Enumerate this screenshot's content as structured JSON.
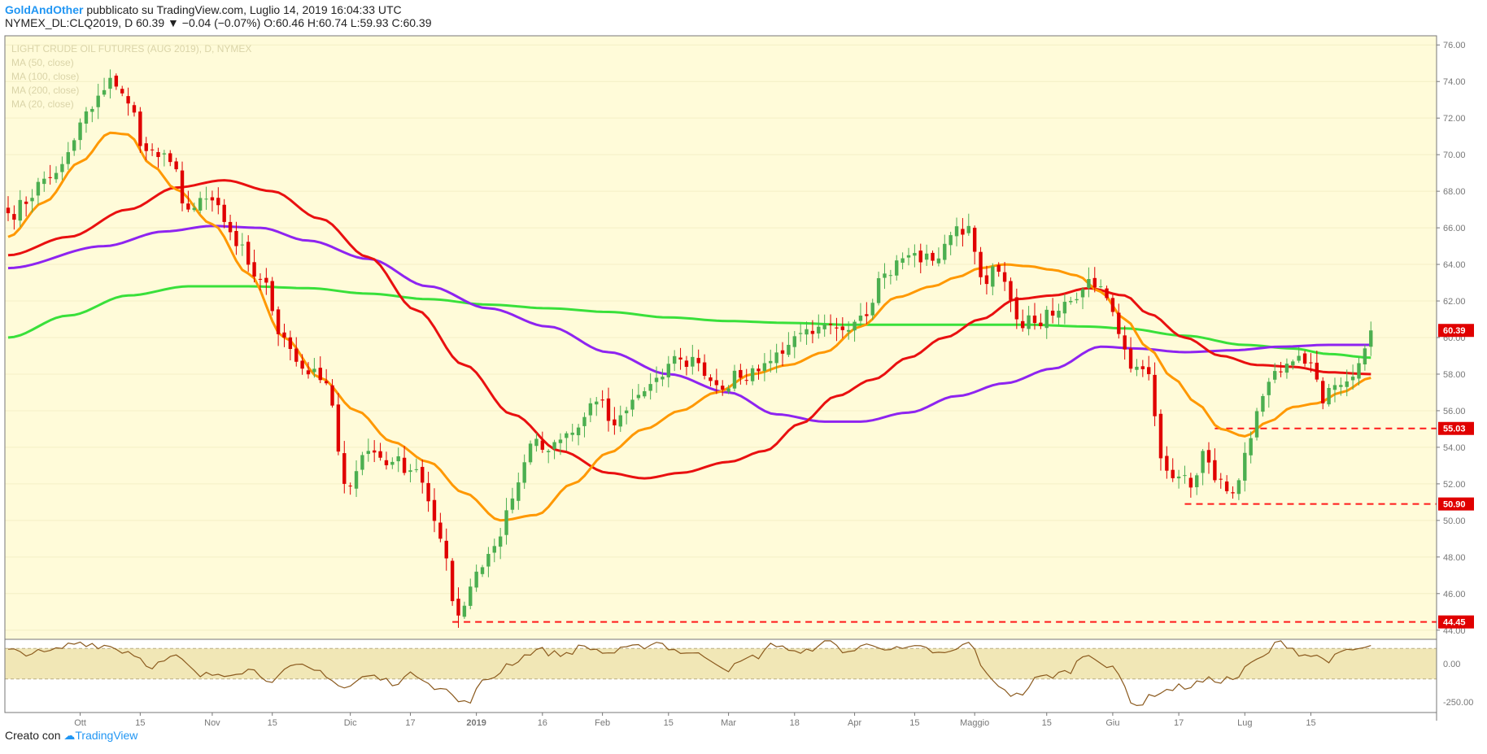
{
  "header": {
    "author": "GoldAndOther",
    "published": "pubblicato su TradingView.com, Luglio 14, 2019 16:04:33 UTC",
    "symbol": "NYMEX_DL:CLQ2019, D",
    "last": "60.39",
    "change": "−0.04 (−0.07%)",
    "o_label": "O:",
    "o": "60.46",
    "h_label": "H:",
    "h": "60.74",
    "l_label": "L:",
    "l": "59.93",
    "c_label": "C:",
    "c": "60.39"
  },
  "footer": {
    "created_with": "Creato con",
    "brand": "TradingView"
  },
  "legend": {
    "title": "LIGHT CRUDE OIL FUTURES (AUG 2019), D, NYMEX",
    "ma50": "MA (50, close)",
    "ma100": "MA (100, close)",
    "ma200": "MA (200, close)",
    "ma20": "MA (20, close)"
  },
  "colors": {
    "background": "#fffbd9",
    "up": "#4caf50",
    "down": "#e00000",
    "ma20": "#ff9800",
    "ma50": "#e91010",
    "ma100": "#8e24f0",
    "ma200": "#39e03a",
    "level": "#ff1a1a",
    "cci": "#8b5a1e"
  },
  "chart_data": [
    {
      "type": "candlestick",
      "ylim": [
        43.5,
        76.5
      ],
      "y_ticks": [
        "76.00",
        "74.00",
        "72.00",
        "70.00",
        "68.00",
        "66.00",
        "64.00",
        "62.00",
        "60.00",
        "58.00",
        "56.00",
        "54.00",
        "52.00",
        "50.00",
        "48.00",
        "46.00",
        "44.00"
      ],
      "x_ticks": [
        "Ott",
        "15",
        "Nov",
        "15",
        "Dic",
        "17",
        "2019",
        "16",
        "Feb",
        "15",
        "Mar",
        "18",
        "Apr",
        "15",
        "Maggio",
        "15",
        "Giu",
        "17",
        "Lug",
        "15"
      ],
      "close_anchors": [
        [
          0,
          66.8
        ],
        [
          8,
          69.0
        ],
        [
          14,
          72.5
        ],
        [
          17,
          74.2
        ],
        [
          20,
          72.8
        ],
        [
          23,
          70.2
        ],
        [
          27,
          69.6
        ],
        [
          30,
          67.0
        ],
        [
          34,
          67.5
        ],
        [
          38,
          65.0
        ],
        [
          42,
          63.2
        ],
        [
          46,
          60.0
        ],
        [
          49,
          58.3
        ],
        [
          53,
          57.5
        ],
        [
          56,
          52.0
        ],
        [
          60,
          53.8
        ],
        [
          64,
          53.2
        ],
        [
          68,
          52.8
        ],
        [
          72,
          49.0
        ],
        [
          75,
          44.8
        ],
        [
          78,
          47.2
        ],
        [
          81,
          48.6
        ],
        [
          84,
          51.2
        ],
        [
          87,
          54.2
        ],
        [
          90,
          53.8
        ],
        [
          94,
          54.8
        ],
        [
          98,
          56.5
        ],
        [
          101,
          55.2
        ],
        [
          104,
          56.6
        ],
        [
          108,
          57.8
        ],
        [
          112,
          58.8
        ],
        [
          115,
          58.6
        ],
        [
          118,
          57.4
        ],
        [
          122,
          57.8
        ],
        [
          126,
          58.6
        ],
        [
          130,
          59.6
        ],
        [
          134,
          60.2
        ],
        [
          138,
          60.5
        ],
        [
          142,
          61.2
        ],
        [
          146,
          63.5
        ],
        [
          150,
          64.5
        ],
        [
          154,
          64.2
        ],
        [
          157,
          65.6
        ],
        [
          160,
          66.1
        ],
        [
          162,
          63.3
        ],
        [
          165,
          63.6
        ],
        [
          168,
          61.0
        ],
        [
          171,
          60.8
        ],
        [
          174,
          61.2
        ],
        [
          177,
          62.0
        ],
        [
          180,
          63.2
        ],
        [
          182,
          62.8
        ],
        [
          184,
          61.4
        ],
        [
          187,
          58.3
        ],
        [
          190,
          58.0
        ],
        [
          192,
          53.4
        ],
        [
          195,
          52.4
        ],
        [
          197,
          51.8
        ],
        [
          199,
          53.8
        ],
        [
          201,
          52.2
        ],
        [
          203,
          51.6
        ],
        [
          205,
          52.2
        ],
        [
          207,
          54.5
        ],
        [
          209,
          56.8
        ],
        [
          212,
          58.1
        ],
        [
          215,
          59.0
        ],
        [
          217,
          58.6
        ],
        [
          219,
          56.4
        ],
        [
          221,
          57.4
        ],
        [
          223,
          57.6
        ],
        [
          225,
          58.6
        ],
        [
          227,
          60.39
        ]
      ],
      "ma20_anchors": [
        [
          0,
          65.5
        ],
        [
          6,
          67.4
        ],
        [
          12,
          69.6
        ],
        [
          17,
          71.2
        ],
        [
          20,
          71.1
        ],
        [
          24,
          69.4
        ],
        [
          28,
          68.1
        ],
        [
          34,
          66.2
        ],
        [
          40,
          63.5
        ],
        [
          46,
          60.0
        ],
        [
          52,
          57.8
        ],
        [
          58,
          56.0
        ],
        [
          64,
          54.3
        ],
        [
          70,
          53.2
        ],
        [
          76,
          51.5
        ],
        [
          82,
          50.0
        ],
        [
          88,
          50.3
        ],
        [
          94,
          52.0
        ],
        [
          100,
          53.7
        ],
        [
          106,
          55.0
        ],
        [
          112,
          56.0
        ],
        [
          118,
          57.0
        ],
        [
          124,
          58.0
        ],
        [
          130,
          58.5
        ],
        [
          136,
          59.2
        ],
        [
          142,
          60.6
        ],
        [
          148,
          62.2
        ],
        [
          154,
          62.8
        ],
        [
          158,
          63.3
        ],
        [
          162,
          63.8
        ],
        [
          166,
          64.0
        ],
        [
          170,
          63.9
        ],
        [
          174,
          63.7
        ],
        [
          178,
          63.4
        ],
        [
          182,
          62.5
        ],
        [
          186,
          61.0
        ],
        [
          190,
          59.4
        ],
        [
          194,
          57.8
        ],
        [
          198,
          56.4
        ],
        [
          202,
          55.0
        ],
        [
          206,
          54.6
        ],
        [
          210,
          55.4
        ],
        [
          214,
          56.2
        ],
        [
          218,
          56.4
        ],
        [
          222,
          57.0
        ],
        [
          227,
          57.8
        ]
      ],
      "ma50_anchors": [
        [
          0,
          64.5
        ],
        [
          10,
          65.5
        ],
        [
          20,
          67.0
        ],
        [
          28,
          68.2
        ],
        [
          36,
          68.6
        ],
        [
          44,
          68.0
        ],
        [
          52,
          66.5
        ],
        [
          60,
          64.4
        ],
        [
          68,
          61.5
        ],
        [
          76,
          58.5
        ],
        [
          84,
          55.8
        ],
        [
          92,
          53.8
        ],
        [
          100,
          52.6
        ],
        [
          106,
          52.3
        ],
        [
          112,
          52.6
        ],
        [
          120,
          53.2
        ],
        [
          126,
          53.8
        ],
        [
          132,
          55.3
        ],
        [
          138,
          56.8
        ],
        [
          144,
          57.7
        ],
        [
          150,
          58.9
        ],
        [
          156,
          60.0
        ],
        [
          162,
          61.0
        ],
        [
          168,
          62.1
        ],
        [
          174,
          62.3
        ],
        [
          180,
          62.7
        ],
        [
          186,
          62.3
        ],
        [
          190,
          61.3
        ],
        [
          196,
          60.0
        ],
        [
          202,
          59.0
        ],
        [
          208,
          58.5
        ],
        [
          214,
          58.4
        ],
        [
          220,
          58.1
        ],
        [
          227,
          58.0
        ]
      ],
      "ma100_anchors": [
        [
          0,
          63.8
        ],
        [
          16,
          65.0
        ],
        [
          26,
          65.8
        ],
        [
          34,
          66.1
        ],
        [
          42,
          66.0
        ],
        [
          50,
          65.3
        ],
        [
          60,
          64.3
        ],
        [
          70,
          62.8
        ],
        [
          80,
          61.6
        ],
        [
          90,
          60.6
        ],
        [
          100,
          59.2
        ],
        [
          110,
          58.0
        ],
        [
          120,
          57.0
        ],
        [
          128,
          55.8
        ],
        [
          136,
          55.4
        ],
        [
          142,
          55.4
        ],
        [
          150,
          55.9
        ],
        [
          158,
          56.8
        ],
        [
          166,
          57.5
        ],
        [
          174,
          58.3
        ],
        [
          182,
          59.5
        ],
        [
          188,
          59.4
        ],
        [
          196,
          59.2
        ],
        [
          204,
          59.3
        ],
        [
          212,
          59.5
        ],
        [
          220,
          59.6
        ],
        [
          227,
          59.6
        ]
      ],
      "ma200_anchors": [
        [
          0,
          60.0
        ],
        [
          10,
          61.2
        ],
        [
          20,
          62.3
        ],
        [
          30,
          62.8
        ],
        [
          40,
          62.8
        ],
        [
          50,
          62.7
        ],
        [
          60,
          62.4
        ],
        [
          70,
          62.1
        ],
        [
          80,
          61.8
        ],
        [
          90,
          61.6
        ],
        [
          100,
          61.4
        ],
        [
          110,
          61.1
        ],
        [
          120,
          60.9
        ],
        [
          130,
          60.8
        ],
        [
          140,
          60.7
        ],
        [
          150,
          60.7
        ],
        [
          160,
          60.7
        ],
        [
          170,
          60.7
        ],
        [
          180,
          60.6
        ],
        [
          186,
          60.5
        ],
        [
          196,
          60.1
        ],
        [
          206,
          59.6
        ],
        [
          214,
          59.4
        ],
        [
          220,
          59.1
        ],
        [
          227,
          58.9
        ]
      ],
      "levels": [
        {
          "value": 60.39,
          "label": "60.39",
          "dashed": false,
          "from_index": null
        },
        {
          "value": 55.03,
          "label": "55.03",
          "dashed": true,
          "from_index": 201
        },
        {
          "value": 50.9,
          "label": "50.90",
          "dashed": true,
          "from_index": 196
        },
        {
          "value": 44.45,
          "label": "44.45",
          "dashed": true,
          "from_index": 74
        }
      ]
    },
    {
      "type": "line",
      "title": "",
      "ylim": [
        -320,
        160
      ],
      "y_ticks": [
        "0.00",
        "-250.00"
      ],
      "band": [
        -100,
        100
      ],
      "cci_anchors": [
        [
          0,
          80
        ],
        [
          6,
          70
        ],
        [
          12,
          140
        ],
        [
          16,
          120
        ],
        [
          20,
          80
        ],
        [
          24,
          -10
        ],
        [
          28,
          40
        ],
        [
          32,
          -80
        ],
        [
          36,
          -60
        ],
        [
          40,
          -40
        ],
        [
          44,
          -100
        ],
        [
          48,
          -20
        ],
        [
          52,
          -50
        ],
        [
          56,
          -160
        ],
        [
          60,
          -80
        ],
        [
          64,
          -120
        ],
        [
          68,
          -70
        ],
        [
          72,
          -160
        ],
        [
          76,
          -260
        ],
        [
          80,
          -100
        ],
        [
          84,
          10
        ],
        [
          88,
          90
        ],
        [
          92,
          60
        ],
        [
          96,
          110
        ],
        [
          100,
          70
        ],
        [
          104,
          100
        ],
        [
          108,
          140
        ],
        [
          112,
          80
        ],
        [
          116,
          50
        ],
        [
          120,
          -30
        ],
        [
          124,
          40
        ],
        [
          128,
          130
        ],
        [
          132,
          60
        ],
        [
          136,
          150
        ],
        [
          140,
          80
        ],
        [
          144,
          130
        ],
        [
          148,
          90
        ],
        [
          152,
          100
        ],
        [
          156,
          60
        ],
        [
          160,
          130
        ],
        [
          164,
          -120
        ],
        [
          168,
          -210
        ],
        [
          172,
          -90
        ],
        [
          176,
          -60
        ],
        [
          180,
          70
        ],
        [
          184,
          -40
        ],
        [
          188,
          -270
        ],
        [
          192,
          -180
        ],
        [
          196,
          -150
        ],
        [
          200,
          -110
        ],
        [
          204,
          -100
        ],
        [
          208,
          20
        ],
        [
          212,
          140
        ],
        [
          216,
          60
        ],
        [
          220,
          30
        ],
        [
          224,
          90
        ],
        [
          227,
          110
        ]
      ]
    }
  ]
}
